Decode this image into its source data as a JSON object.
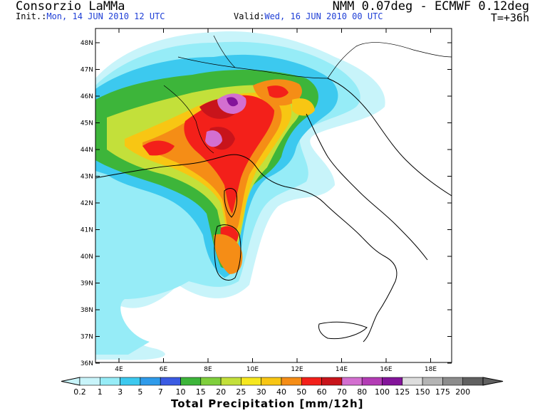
{
  "header": {
    "title_left": "Consorzio LaMMa",
    "init_label": "Init.:",
    "init_value": "Mon, 14 JUN 2010   12 UTC",
    "valid_label": "Valid:",
    "valid_value": "Wed, 16 JUN 2010   00 UTC",
    "title_right": "NMM 0.07deg - ECMWF 0.12deg",
    "lead_time": "T=+36h"
  },
  "map": {
    "lat_labels": [
      "48N",
      "47N",
      "46N",
      "45N",
      "44N",
      "43N",
      "42N",
      "41N",
      "40N",
      "39N",
      "38N",
      "37N",
      "36N"
    ],
    "lon_labels": [
      "4E",
      "6E",
      "8E",
      "10E",
      "12E",
      "14E",
      "16E",
      "18E"
    ]
  },
  "colorbar": {
    "title": "Total Precipitation [mm/12h]",
    "labels": [
      "0.2",
      "1",
      "3",
      "5",
      "7",
      "10",
      "15",
      "20",
      "25",
      "30",
      "40",
      "50",
      "60",
      "70",
      "80",
      "100",
      "125",
      "150",
      "175",
      "200"
    ],
    "colors": [
      "#c8f4fa",
      "#96ecf7",
      "#3cc9ef",
      "#2f9bea",
      "#3a5be3",
      "#3db53a",
      "#7fcf3c",
      "#c3e03a",
      "#f6e71e",
      "#f8c613",
      "#f58d16",
      "#f3201a",
      "#c8141b",
      "#d36fd0",
      "#b33cb5",
      "#83149a",
      "#dddddd",
      "#b4b4b4",
      "#8c8c8c",
      "#606060"
    ]
  }
}
